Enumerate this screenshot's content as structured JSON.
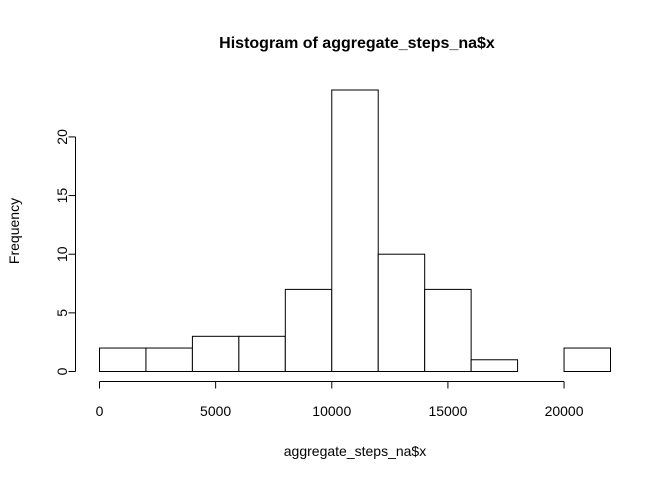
{
  "chart_data": {
    "type": "bar",
    "title": "Histogram of aggregate_steps_na$x",
    "xlabel": "aggregate_steps_na$x",
    "ylabel": "Frequency",
    "bin_edges": [
      0,
      2000,
      4000,
      6000,
      8000,
      10000,
      12000,
      14000,
      16000,
      18000,
      20000,
      22000
    ],
    "values": [
      2,
      2,
      3,
      3,
      7,
      24,
      10,
      7,
      1,
      0,
      2
    ],
    "xlim": [
      0,
      22000
    ],
    "ylim": [
      0,
      24
    ],
    "x_ticks": [
      0,
      5000,
      10000,
      15000,
      20000
    ],
    "x_tick_labels": [
      "0",
      "5000",
      "10000",
      "15000",
      "20000"
    ],
    "y_ticks": [
      0,
      5,
      10,
      15,
      20
    ],
    "y_tick_labels": [
      "0",
      "5",
      "10",
      "15",
      "20"
    ],
    "grid": false,
    "legend": "none",
    "colors": {
      "bar_fill": "#ffffff",
      "bar_stroke": "#000000"
    }
  }
}
